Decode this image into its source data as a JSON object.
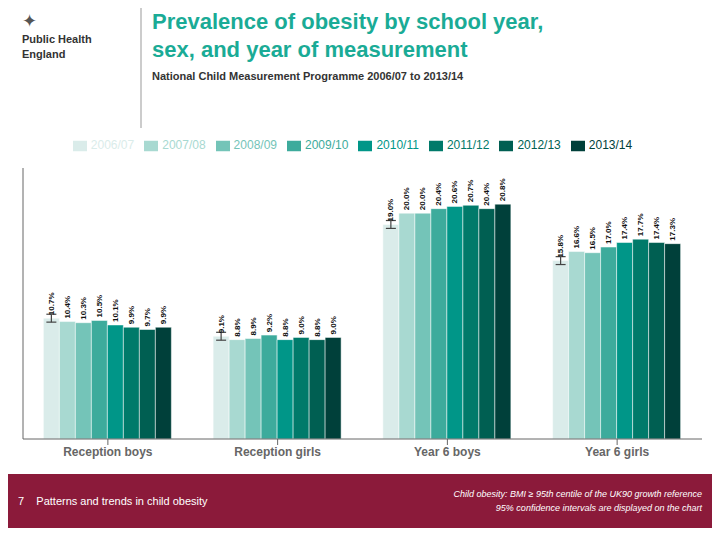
{
  "chart_data": {
    "type": "bar",
    "title": "Prevalence of obesity by school year,\nsex, and year of measurement",
    "subtitle": "National Child Measurement Programme 2006/07 to 2013/14",
    "annotations": [
      "✦",
      "Public Health\nEngland",
      "7    Patterns and trends in child obesity",
      "Child obesity: BMI ≥ 95th centile of the UK90 growth reference\n95% confidence intervals are displayed on the chart"
    ],
    "categories": [
      "Reception boys",
      "Reception girls",
      "Year 6 boys",
      "Year 6 girls"
    ],
    "series": [
      {
        "name": "2006/07",
        "color": "#daecea",
        "values": [
          10.7,
          9.1,
          19.0,
          15.8
        ],
        "value_labels": [
          "10.7%",
          "9.1%",
          "19.0%",
          "15.8%"
        ],
        "errors": [
          0.35,
          0.35,
          0.35,
          0.35
        ]
      },
      {
        "name": "2007/08",
        "color": "#a8d9d1",
        "values": [
          10.4,
          8.8,
          20.0,
          16.6
        ],
        "value_labels": [
          "10.4%",
          "8.8%",
          "20.0%",
          "16.6%"
        ]
      },
      {
        "name": "2008/09",
        "color": "#74c4b8",
        "values": [
          10.3,
          8.9,
          20.0,
          16.5
        ],
        "value_labels": [
          "10.3%",
          "8.9%",
          "20.0%",
          "16.5%"
        ]
      },
      {
        "name": "2009/10",
        "color": "#3dab9c",
        "values": [
          10.5,
          9.2,
          20.4,
          17.0
        ],
        "value_labels": [
          "10.5%",
          "9.2%",
          "20.4%",
          "17.0%"
        ]
      },
      {
        "name": "2010/11",
        "color": "#009688",
        "values": [
          10.1,
          8.8,
          20.6,
          17.4
        ],
        "value_labels": [
          "10.1%",
          "8.8%",
          "20.6%",
          "17.4%"
        ]
      },
      {
        "name": "2011/12",
        "color": "#007a6a",
        "values": [
          9.9,
          9.0,
          20.7,
          17.7
        ],
        "value_labels": [
          "9.9%",
          "9.0%",
          "20.7%",
          "17.7%"
        ]
      },
      {
        "name": "2012/13",
        "color": "#005f52",
        "values": [
          9.7,
          8.8,
          20.4,
          17.4
        ],
        "value_labels": [
          "9.7%",
          "8.8%",
          "20.4%",
          "17.4%"
        ]
      },
      {
        "name": "2013/14",
        "color": "#00403a",
        "values": [
          9.9,
          9.0,
          20.8,
          17.3
        ],
        "value_labels": [
          "9.9%",
          "9.0%",
          "20.8%",
          "17.3%"
        ]
      }
    ],
    "ylim": [
      0,
      24
    ],
    "data_labels": true,
    "tick_labels": "x",
    "grid": false,
    "legend": "top"
  }
}
